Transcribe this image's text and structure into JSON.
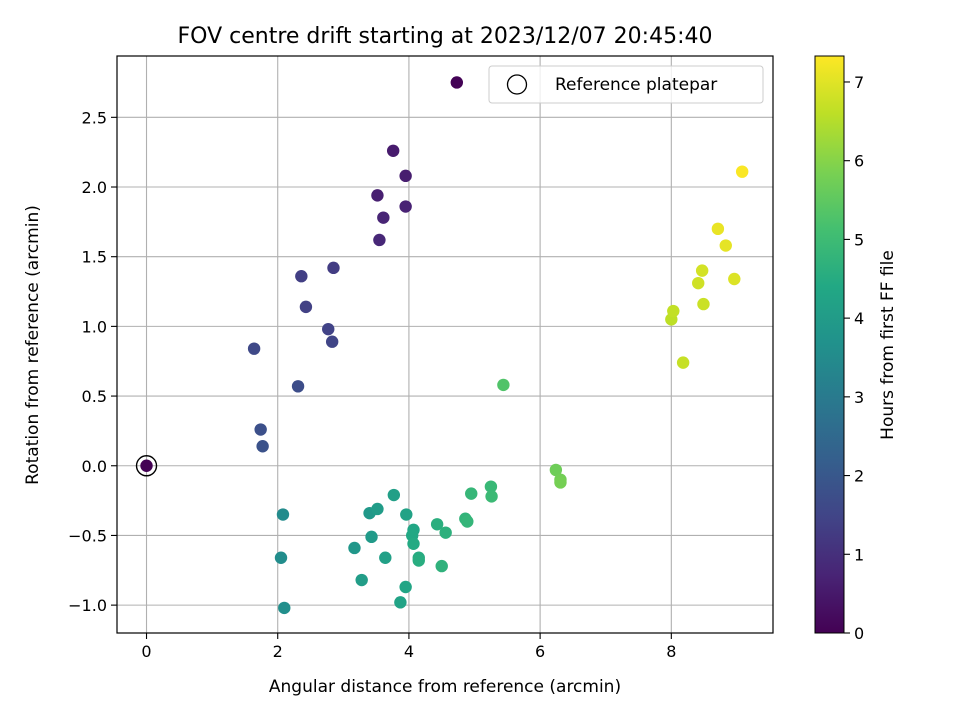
{
  "chart_data": {
    "type": "scatter",
    "title": "FOV centre drift starting at 2023/12/07 20:45:40",
    "xlabel": "Angular distance from reference (arcmin)",
    "ylabel": "Rotation from reference (arcmin)",
    "xlim": [
      -0.45,
      9.55
    ],
    "ylim": [
      -1.2,
      2.94
    ],
    "xticks": [
      0,
      2,
      4,
      6,
      8
    ],
    "yticks": [
      -1.0,
      -0.5,
      0.0,
      0.5,
      1.0,
      1.5,
      2.0,
      2.5
    ],
    "xtick_labels": [
      "0",
      "2",
      "4",
      "6",
      "8"
    ],
    "ytick_labels": [
      "−1.0",
      "−0.5",
      "0.0",
      "0.5",
      "1.0",
      "1.5",
      "2.0",
      "2.5"
    ],
    "grid": true,
    "legend": {
      "placement": "upper-right",
      "label": "Reference platepar"
    },
    "reference_point": {
      "x": 0.0,
      "y": 0.0
    },
    "colorbar": {
      "label": "Hours from first FF file",
      "colormap": "viridis",
      "range": [
        0,
        7.33
      ],
      "ticks": [
        0,
        1,
        2,
        3,
        4,
        5,
        6,
        7
      ],
      "tick_labels": [
        "0",
        "1",
        "2",
        "3",
        "4",
        "5",
        "6",
        "7"
      ]
    },
    "points": [
      {
        "x": 0.0,
        "y": 0.0,
        "h": 0.0
      },
      {
        "x": 4.73,
        "y": 2.75,
        "h": 0.05
      },
      {
        "x": 3.76,
        "y": 2.26,
        "h": 0.55
      },
      {
        "x": 3.95,
        "y": 2.08,
        "h": 0.6
      },
      {
        "x": 3.52,
        "y": 1.94,
        "h": 0.65
      },
      {
        "x": 3.95,
        "y": 1.86,
        "h": 0.7
      },
      {
        "x": 3.61,
        "y": 1.78,
        "h": 0.75
      },
      {
        "x": 3.55,
        "y": 1.62,
        "h": 0.8
      },
      {
        "x": 2.85,
        "y": 1.42,
        "h": 1.3
      },
      {
        "x": 2.36,
        "y": 1.36,
        "h": 1.35
      },
      {
        "x": 2.43,
        "y": 1.14,
        "h": 1.4
      },
      {
        "x": 2.77,
        "y": 0.98,
        "h": 1.45
      },
      {
        "x": 2.83,
        "y": 0.89,
        "h": 1.5
      },
      {
        "x": 1.64,
        "y": 0.84,
        "h": 1.6
      },
      {
        "x": 2.31,
        "y": 0.57,
        "h": 1.7
      },
      {
        "x": 1.74,
        "y": 0.26,
        "h": 1.8
      },
      {
        "x": 1.77,
        "y": 0.14,
        "h": 1.85
      },
      {
        "x": 2.08,
        "y": -0.35,
        "h": 3.5
      },
      {
        "x": 2.05,
        "y": -0.66,
        "h": 3.55
      },
      {
        "x": 2.1,
        "y": -1.02,
        "h": 3.6
      },
      {
        "x": 3.17,
        "y": -0.59,
        "h": 3.85
      },
      {
        "x": 3.4,
        "y": -0.34,
        "h": 3.9
      },
      {
        "x": 3.43,
        "y": -0.51,
        "h": 3.95
      },
      {
        "x": 3.52,
        "y": -0.31,
        "h": 4.0
      },
      {
        "x": 3.28,
        "y": -0.82,
        "h": 4.05
      },
      {
        "x": 3.77,
        "y": -0.21,
        "h": 4.1
      },
      {
        "x": 3.64,
        "y": -0.66,
        "h": 4.15
      },
      {
        "x": 3.96,
        "y": -0.35,
        "h": 4.2
      },
      {
        "x": 3.87,
        "y": -0.98,
        "h": 4.25
      },
      {
        "x": 3.95,
        "y": -0.87,
        "h": 4.3
      },
      {
        "x": 4.07,
        "y": -0.46,
        "h": 4.35
      },
      {
        "x": 4.05,
        "y": -0.5,
        "h": 4.4
      },
      {
        "x": 4.07,
        "y": -0.56,
        "h": 4.45
      },
      {
        "x": 4.15,
        "y": -0.66,
        "h": 4.5
      },
      {
        "x": 4.15,
        "y": -0.68,
        "h": 4.55
      },
      {
        "x": 4.43,
        "y": -0.42,
        "h": 4.6
      },
      {
        "x": 4.56,
        "y": -0.48,
        "h": 4.65
      },
      {
        "x": 4.5,
        "y": -0.72,
        "h": 4.7
      },
      {
        "x": 4.86,
        "y": -0.38,
        "h": 4.75
      },
      {
        "x": 4.89,
        "y": -0.4,
        "h": 4.8
      },
      {
        "x": 4.95,
        "y": -0.2,
        "h": 4.85
      },
      {
        "x": 5.25,
        "y": -0.15,
        "h": 4.9
      },
      {
        "x": 5.26,
        "y": -0.22,
        "h": 4.95
      },
      {
        "x": 5.44,
        "y": 0.58,
        "h": 5.3
      },
      {
        "x": 6.24,
        "y": -0.03,
        "h": 5.7
      },
      {
        "x": 6.31,
        "y": -0.1,
        "h": 5.75
      },
      {
        "x": 6.31,
        "y": -0.12,
        "h": 5.8
      },
      {
        "x": 8.0,
        "y": 1.05,
        "h": 6.6
      },
      {
        "x": 8.03,
        "y": 1.11,
        "h": 6.65
      },
      {
        "x": 8.18,
        "y": 0.74,
        "h": 6.7
      },
      {
        "x": 8.49,
        "y": 1.16,
        "h": 6.75
      },
      {
        "x": 8.41,
        "y": 1.31,
        "h": 6.8
      },
      {
        "x": 8.47,
        "y": 1.4,
        "h": 6.85
      },
      {
        "x": 8.96,
        "y": 1.34,
        "h": 6.95
      },
      {
        "x": 8.83,
        "y": 1.58,
        "h": 7.05
      },
      {
        "x": 8.71,
        "y": 1.7,
        "h": 7.1
      },
      {
        "x": 9.08,
        "y": 2.11,
        "h": 7.3
      }
    ]
  }
}
